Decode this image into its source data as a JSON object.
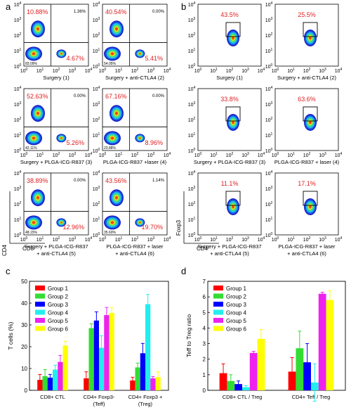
{
  "panel_letters": [
    "a",
    "b",
    "c",
    "d"
  ],
  "colors": {
    "group1": "#ff0000",
    "group2": "#33dd33",
    "group3": "#0000ff",
    "group4": "#22eeee",
    "group5": "#ee22ee",
    "group6": "#ffff00",
    "flow_pct": "#e02020",
    "axis": "#000000"
  },
  "flow_a": {
    "tick_labels": [
      "10^0",
      "10^1",
      "10^2",
      "10^3",
      "10^4"
    ],
    "x_axis": "CD8",
    "y_axis": "CD4",
    "plots": [
      {
        "label": "Surgery (1)",
        "ul": "10.88%",
        "ur": "1.36%",
        "lr": "4.67%",
        "ll": "83.09%"
      },
      {
        "label": "Surgery + anti-CTLA4 (2)",
        "ul": "40.54%",
        "ur": "0.00%",
        "lr": "5.41%",
        "ll": "54.05%"
      },
      {
        "label": "Surgery + PLGA-ICG-R837 (3)",
        "ul": "52.63%",
        "ur": "0.00%",
        "lr": "5.26%",
        "ll": "42.11%"
      },
      {
        "label": "PLGA-ICG-R837 +laser (4)",
        "ul": "67.16%",
        "ur": "0.00%",
        "lr": "8.96%",
        "ll": "23.88%"
      },
      {
        "label": "Surgery + PLGA-ICG-R837\n+ anti-CTLA4 (5)",
        "ul": "38.89%",
        "ur": "0.00%",
        "lr": "12.96%",
        "ll": "48.15%"
      },
      {
        "label": "PLGA-ICG-R837 + laser\n+ anti-CTLA4 (6)",
        "ul": "43.56%",
        "ur": "1.14%",
        "lr": "19.70%",
        "ll": "35.60%"
      }
    ]
  },
  "flow_b": {
    "tick_labels": [
      "10^0",
      "10^1",
      "10^2",
      "10^3",
      "10^4"
    ],
    "x_axis": "CD4",
    "y_axis": "Foxp3",
    "plots": [
      {
        "label": "Surgery (1)",
        "pct": "43.5%"
      },
      {
        "label": "Surgery + anti-CTLA4 (2)",
        "pct": "25.5%"
      },
      {
        "label": "Surgery + PLGA-ICG-R837 (3)",
        "pct": "33.8%"
      },
      {
        "label": "PLGA-ICG-R837 + laser (4)",
        "pct": "63.6%"
      },
      {
        "label": "Surgery + PLGA-ICG-R837\n+ anti-CTLA4 (5)",
        "pct": "11.1%"
      },
      {
        "label": "PLGA-ICG-R837 + laser\n+ anti-CTLA4 (6)",
        "pct": "17.1%"
      }
    ]
  },
  "chart_data": [
    {
      "type": "bar",
      "ylabel": "T cells (%)",
      "ylim": [
        0,
        50
      ],
      "yticks": [
        0,
        10,
        20,
        30,
        40,
        50
      ],
      "categories": [
        "CD8+ CTL",
        "CD4+ Foxp3-\n(Teff)",
        "CD4+ Foxp3 +\n(Treg)"
      ],
      "legend_position": "top-left",
      "series": [
        {
          "name": "Group 1",
          "values": [
            4.8,
            5.5,
            4.5
          ],
          "errors": [
            2.5,
            3.0,
            1.5
          ]
        },
        {
          "name": "Group 2",
          "values": [
            6.5,
            28.5,
            10.5
          ],
          "errors": [
            3.0,
            2.0,
            2.0
          ]
        },
        {
          "name": "Group 3",
          "values": [
            5.8,
            32.0,
            17.0
          ],
          "errors": [
            1.5,
            4.0,
            4.5
          ]
        },
        {
          "name": "Group 4",
          "values": [
            9.5,
            19.5,
            39.5
          ],
          "errors": [
            2.0,
            5.5,
            4.5
          ]
        },
        {
          "name": "Group 5",
          "values": [
            13.0,
            34.5,
            5.5
          ],
          "errors": [
            3.0,
            3.5,
            0.8
          ]
        },
        {
          "name": "Group 6",
          "values": [
            20.5,
            35.5,
            6.0
          ],
          "errors": [
            2.0,
            2.5,
            2.5
          ]
        }
      ]
    },
    {
      "type": "bar",
      "ylabel": "Teff to Treg ratio",
      "ylim": [
        0,
        7
      ],
      "yticks": [
        0,
        1,
        2,
        3,
        4,
        5,
        6,
        7
      ],
      "categories": [
        "CD8+ CTL / Treg",
        "CD4+ Teff / Treg"
      ],
      "legend_position": "top-left",
      "series": [
        {
          "name": "Group 1",
          "values": [
            1.1,
            1.2
          ],
          "errors": [
            0.6,
            0.9
          ]
        },
        {
          "name": "Group 2",
          "values": [
            0.6,
            2.7
          ],
          "errors": [
            0.4,
            1.1
          ]
        },
        {
          "name": "Group 3",
          "values": [
            0.4,
            1.8
          ],
          "errors": [
            0.2,
            1.2
          ]
        },
        {
          "name": "Group 4",
          "values": [
            0.2,
            0.5
          ],
          "errors": [
            0.1,
            1.2
          ]
        },
        {
          "name": "Group 5",
          "values": [
            2.4,
            6.2
          ],
          "errors": [
            0.1,
            0.1
          ]
        },
        {
          "name": "Group 6",
          "values": [
            3.3,
            5.8
          ],
          "errors": [
            0.6,
            0.6
          ]
        }
      ]
    }
  ]
}
